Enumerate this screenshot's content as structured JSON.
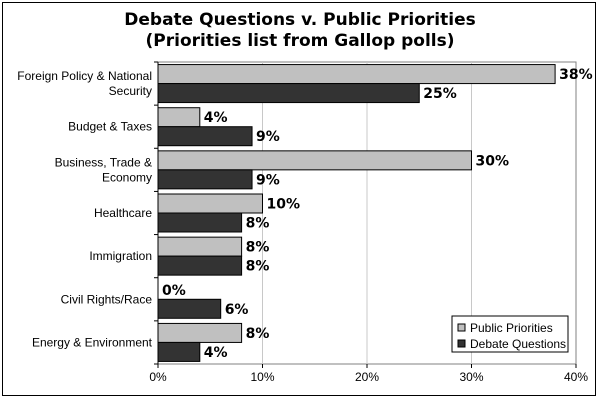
{
  "chart_data": {
    "type": "bar",
    "orientation": "horizontal",
    "title": "Debate Questions v. Public Priorities",
    "subtitle": "(Priorities list from Gallop polls)",
    "categories": [
      [
        "Foreign Policy & National",
        "Security"
      ],
      [
        "Budget & Taxes"
      ],
      [
        "Business, Trade &",
        "Economy"
      ],
      [
        "Healthcare"
      ],
      [
        "Immigration"
      ],
      [
        "Civil Rights/Race"
      ],
      [
        "Energy & Environment"
      ]
    ],
    "series": [
      {
        "name": "Public Priorities",
        "color": "#c0c0c0",
        "values": [
          38,
          4,
          30,
          10,
          8,
          0,
          8
        ]
      },
      {
        "name": "Debate Questions",
        "color": "#333333",
        "values": [
          25,
          9,
          9,
          8,
          8,
          6,
          4
        ]
      }
    ],
    "xlim": [
      0,
      40
    ],
    "xticks": [
      0,
      10,
      20,
      30,
      40
    ],
    "tick_suffix": "%",
    "value_suffix": "%",
    "grid": true,
    "legend_position": "bottom-right"
  }
}
